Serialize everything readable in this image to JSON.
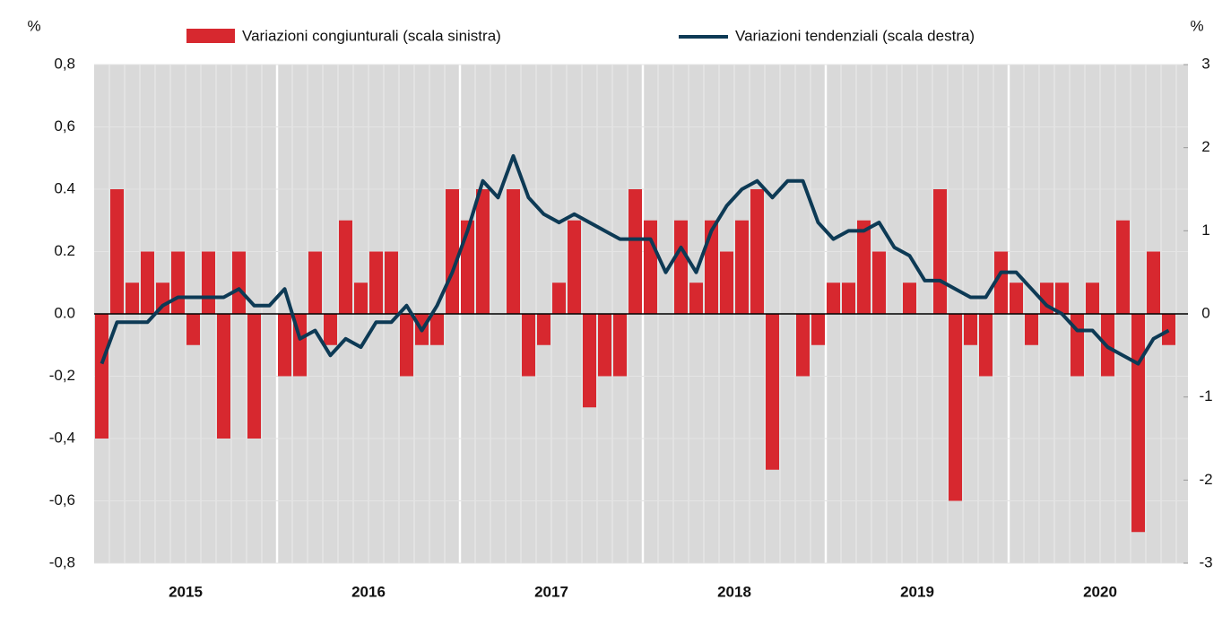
{
  "chart_data": {
    "type": "bar-line",
    "left_unit": "%",
    "right_unit": "%",
    "years": [
      "2015",
      "2016",
      "2017",
      "2018",
      "2019",
      "2020"
    ],
    "series": [
      {
        "name": "Variazioni congiunturali (scala sinistra)",
        "type": "bar",
        "color": "#d7282f",
        "values": [
          -0.4,
          0.4,
          0.1,
          0.2,
          0.1,
          0.2,
          -0.1,
          0.2,
          -0.4,
          0.2,
          -0.4,
          0,
          -0.2,
          -0.2,
          0.2,
          -0.1,
          0.3,
          0.1,
          0.2,
          0.2,
          -0.2,
          -0.1,
          -0.1,
          0.4,
          0.3,
          0.4,
          0,
          0.4,
          -0.2,
          -0.1,
          0.1,
          0.3,
          -0.3,
          -0.2,
          -0.2,
          0.4,
          0.3,
          0,
          0.3,
          0.1,
          0.3,
          0.2,
          0.3,
          0.4,
          -0.5,
          0,
          -0.2,
          -0.1,
          0.1,
          0.1,
          0.3,
          0.2,
          0,
          0.1,
          0,
          0.4,
          -0.6,
          -0.1,
          -0.2,
          0.2,
          0.1,
          -0.1,
          0.1,
          0.1,
          -0.2,
          0.1,
          -0.2,
          0.3,
          -0.7,
          0.2,
          -0.1
        ]
      },
      {
        "name": "Variazioni tendenziali (scala destra)",
        "type": "line",
        "axis": "y2",
        "color": "#0d3a55",
        "values": [
          -0.6,
          -0.1,
          -0.1,
          -0.1,
          0.1,
          0.2,
          0.2,
          0.2,
          0.2,
          0.3,
          0.1,
          0.1,
          0.3,
          -0.3,
          -0.2,
          -0.5,
          -0.3,
          -0.4,
          -0.1,
          -0.1,
          0.1,
          -0.2,
          0.1,
          0.5,
          1.0,
          1.6,
          1.4,
          1.9,
          1.4,
          1.2,
          1.1,
          1.2,
          1.1,
          1.0,
          0.9,
          0.9,
          0.9,
          0.5,
          0.8,
          0.5,
          1.0,
          1.3,
          1.5,
          1.6,
          1.4,
          1.6,
          1.6,
          1.1,
          0.9,
          1.0,
          1.0,
          1.1,
          0.8,
          0.7,
          0.4,
          0.4,
          0.3,
          0.2,
          0.2,
          0.5,
          0.5,
          0.3,
          0.1,
          0.0,
          -0.2,
          -0.2,
          -0.4,
          -0.5,
          -0.6,
          -0.3,
          -0.2
        ]
      }
    ],
    "ylim": [
      -0.8,
      0.8
    ],
    "yticks": [
      {
        "value": 0.8,
        "label": "0,8"
      },
      {
        "value": 0.6,
        "label": "0,6"
      },
      {
        "value": 0.4,
        "label": "0.4"
      },
      {
        "value": 0.2,
        "label": "0.2"
      },
      {
        "value": 0,
        "label": "0.0"
      },
      {
        "value": -0.2,
        "label": "-0,2"
      },
      {
        "value": -0.4,
        "label": "-0,4"
      },
      {
        "value": -0.6,
        "label": "-0,6"
      },
      {
        "value": -0.8,
        "label": "-0,8"
      }
    ],
    "y2lim": [
      -3,
      3
    ],
    "y2ticks": [
      3,
      2,
      1,
      0,
      -1,
      -2,
      -3
    ],
    "grid": true
  }
}
